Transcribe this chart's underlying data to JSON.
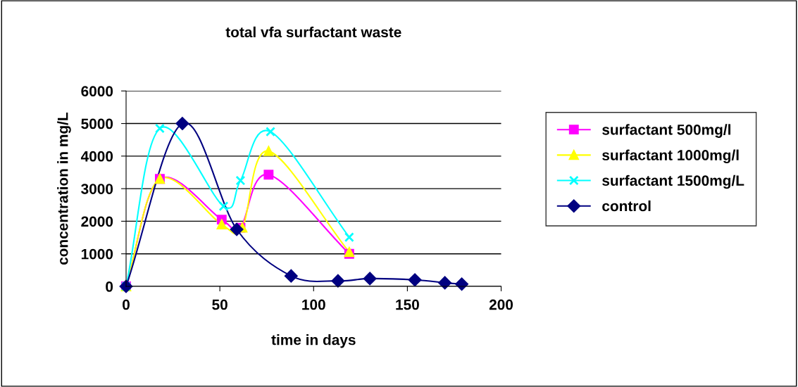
{
  "chart_data": {
    "type": "line",
    "title": "total vfa surfactant waste",
    "xlabel": "time in days",
    "ylabel": "concentration in mg/L",
    "xlim": [
      0,
      200
    ],
    "xticks": [
      0,
      50,
      100,
      150,
      200
    ],
    "ylim": [
      0,
      6000
    ],
    "yticks": [
      0,
      1000,
      2000,
      3000,
      4000,
      5000,
      6000
    ],
    "grid": "y",
    "legend": "right",
    "series": [
      {
        "name": "surfactant 500mg/l",
        "color": "#ff00ff",
        "marker": "square",
        "x": [
          0,
          18,
          51,
          61,
          76,
          119
        ],
        "values": [
          0,
          3300,
          2050,
          1800,
          3430,
          1000
        ]
      },
      {
        "name": "surfactant 1000mg/l",
        "color": "#ffff00",
        "marker": "triangle",
        "x": [
          0,
          18,
          51,
          62,
          76,
          119
        ],
        "values": [
          0,
          3300,
          1900,
          1800,
          4150,
          1050
        ]
      },
      {
        "name": "surfactant 1500mg/L",
        "color": "#00ffff",
        "marker": "cross",
        "x": [
          0,
          18,
          52,
          61,
          77,
          119
        ],
        "values": [
          0,
          4850,
          2460,
          3250,
          4750,
          1510
        ]
      },
      {
        "name": "control",
        "color": "#000080",
        "marker": "diamond",
        "x": [
          0,
          30,
          59,
          88,
          113,
          130,
          154,
          170,
          179
        ],
        "values": [
          0,
          5000,
          1750,
          320,
          170,
          240,
          200,
          110,
          70
        ]
      }
    ]
  }
}
